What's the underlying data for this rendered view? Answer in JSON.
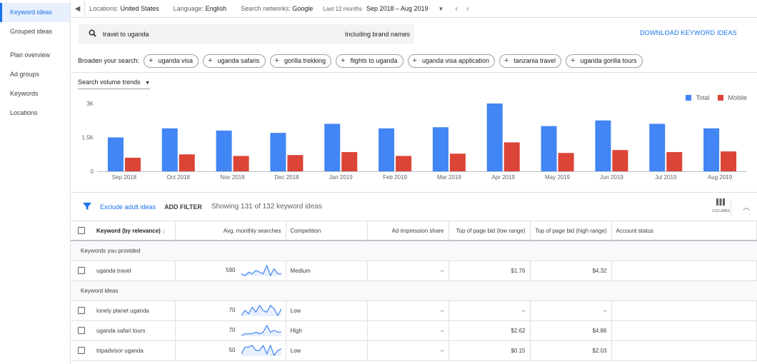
{
  "sidebar": {
    "items": [
      {
        "label": "Keyword ideas",
        "active": true
      },
      {
        "label": "Grouped ideas",
        "active": false
      },
      {
        "label": "Plan overview",
        "active": false
      },
      {
        "label": "Ad groups",
        "active": false
      },
      {
        "label": "Keywords",
        "active": false
      },
      {
        "label": "Locations",
        "active": false
      }
    ]
  },
  "topbar": {
    "locations_label": "Locations:",
    "locations_value": "United States",
    "language_label": "Language:",
    "language_value": "English",
    "networks_label": "Search networks:",
    "networks_value": "Google",
    "period_label": "Last 12 months",
    "period_value": "Sep 2018 – Aug 2019"
  },
  "search": {
    "query": "travel to uganda",
    "brand": "Including brand names",
    "download_label": "DOWNLOAD KEYWORD IDEAS"
  },
  "broaden": {
    "label": "Broaden your search:",
    "chips": [
      "uganda visa",
      "uganda safaris",
      "gorilla trekking",
      "flights to uganda",
      "uganda visa application",
      "tanzania travel",
      "uganda gorilla tours"
    ]
  },
  "chart": {
    "dropdown_label": "Search volume trends",
    "legend_total": "Total",
    "legend_mobile": "Mobile",
    "total_color": "#4285f4",
    "mobile_color": "#db4437"
  },
  "chart_data": {
    "type": "bar",
    "categories": [
      "Sep 2018",
      "Oct 2018",
      "Nov 2018",
      "Dec 2018",
      "Jan 2019",
      "Feb 2019",
      "Mar 2019",
      "Apr 2019",
      "May 2019",
      "Jun 2019",
      "Jul 2019",
      "Aug 2019"
    ],
    "series": [
      {
        "name": "Total",
        "values": [
          1500,
          1900,
          1800,
          1700,
          2100,
          1900,
          1950,
          3000,
          2000,
          2250,
          2100,
          1900
        ]
      },
      {
        "name": "Mobile",
        "values": [
          600,
          750,
          680,
          720,
          850,
          680,
          780,
          1280,
          810,
          940,
          850,
          880
        ]
      }
    ],
    "yticks": [
      "0",
      "1.5K",
      "3K"
    ],
    "ylim": [
      0,
      3000
    ]
  },
  "filter": {
    "exclude_label": "Exclude adult ideas",
    "add_filter_label": "ADD FILTER",
    "showing": "Showing 131 of 132 keyword ideas",
    "columns_label": "COLUMNS"
  },
  "table": {
    "headers": [
      "Keyword (by relevance)",
      "Avg. monthly searches",
      "Competition",
      "Ad impression share",
      "Top of page bid (low range)",
      "Top of page bid (high range)",
      "Account status"
    ],
    "groups": [
      {
        "label": "Keywords you provided",
        "rows": [
          {
            "keyword": "uganda travel",
            "searches": "590",
            "competition": "Medium",
            "share": "–",
            "low": "$1.76",
            "high": "$4.32",
            "status": "",
            "spark": [
              4,
              3,
              5,
              4,
              6,
              5,
              4,
              9,
              3,
              7,
              4,
              4
            ]
          }
        ]
      },
      {
        "label": "Keyword ideas",
        "rows": [
          {
            "keyword": "lonely planet uganda",
            "searches": "70",
            "competition": "Low",
            "share": "–",
            "low": "–",
            "high": "–",
            "status": "",
            "spark": [
              3,
              6,
              4,
              8,
              5,
              9,
              6,
              5,
              9,
              7,
              3,
              7
            ]
          },
          {
            "keyword": "uganda safari tours",
            "searches": "70",
            "competition": "High",
            "share": "–",
            "low": "$2.62",
            "high": "$4.86",
            "status": "",
            "spark": [
              3,
              4,
              4,
              4,
              5,
              4,
              5,
              9,
              5,
              6,
              5,
              5
            ]
          },
          {
            "keyword": "tripadvisor uganda",
            "searches": "50",
            "competition": "Low",
            "share": "–",
            "low": "$0.15",
            "high": "$2.03",
            "status": "",
            "spark": [
              4,
              8,
              8,
              9,
              6,
              6,
              9,
              4,
              9,
              3,
              6,
              7
            ]
          }
        ]
      }
    ]
  }
}
